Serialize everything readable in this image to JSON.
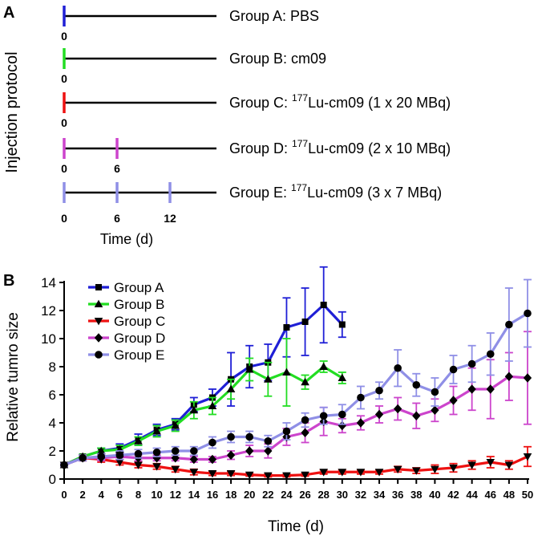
{
  "panel_a": {
    "label": "A",
    "ylabel": "Injection protocol",
    "xlabel": "Time (d)",
    "groups": [
      {
        "name": "Group A: PBS",
        "prefix": "Group A: PBS",
        "sup": "",
        "suffix": "",
        "color": "#1f1fd6",
        "days": [
          0
        ]
      },
      {
        "name": "Group B: cm09",
        "prefix": "Group B: cm09",
        "sup": "",
        "suffix": "",
        "color": "#22dd22",
        "days": [
          0
        ]
      },
      {
        "name": "Group C: 177Lu-cm09 (1 x 20 MBq)",
        "prefix": "Group C: ",
        "sup": "177",
        "suffix": "Lu-cm09 (1 x 20 MBq)",
        "color": "#ee1111",
        "days": [
          0
        ]
      },
      {
        "name": "Group D: 177Lu-cm09 (2 x 10 MBq)",
        "prefix": "Group D: ",
        "sup": "177",
        "suffix": "Lu-cm09 (2 x 10 MBq)",
        "color": "#cc44cc",
        "days": [
          0,
          6
        ]
      },
      {
        "name": "Group E: 177Lu-cm09 (3 x 7 MBq)",
        "prefix": "Group E: ",
        "sup": "177",
        "suffix": "Lu-cm09 (3 x   7 MBq)",
        "color": "#8f8fe6",
        "days": [
          0,
          6,
          12
        ]
      }
    ],
    "tick_labels": [
      {
        "group_index": 0,
        "labels": [
          "0"
        ]
      },
      {
        "group_index": 1,
        "labels": [
          "0"
        ]
      },
      {
        "group_index": 2,
        "labels": [
          "0"
        ]
      },
      {
        "group_index": 3,
        "labels": [
          "0",
          "6"
        ]
      },
      {
        "group_index": 4,
        "labels": [
          "0",
          "6",
          "12"
        ]
      }
    ]
  },
  "chart_data": {
    "panel_label": "B",
    "type": "line",
    "title": "",
    "xlabel": "Time (d)",
    "ylabel": "Relative tumro size",
    "xlim": [
      0,
      50
    ],
    "ylim": [
      0,
      14
    ],
    "xticks": [
      0,
      2,
      4,
      6,
      8,
      10,
      12,
      14,
      16,
      18,
      20,
      22,
      24,
      26,
      28,
      30,
      32,
      34,
      36,
      38,
      40,
      42,
      44,
      46,
      48,
      50
    ],
    "yticks": [
      0,
      2,
      4,
      6,
      8,
      10,
      12,
      14
    ],
    "legend_position": "top-left",
    "series": [
      {
        "name": "Group A",
        "color": "#1f1fd6",
        "marker": "square",
        "x": [
          0,
          2,
          4,
          6,
          8,
          10,
          12,
          14,
          16,
          18,
          20,
          22,
          24,
          26,
          28,
          30
        ],
        "y": [
          1.0,
          1.6,
          2.0,
          2.2,
          2.8,
          3.5,
          3.9,
          5.3,
          5.8,
          7.1,
          8.0,
          8.3,
          10.8,
          11.2,
          12.4,
          11.0
        ],
        "err": [
          0.1,
          0.15,
          0.2,
          0.3,
          0.4,
          0.4,
          0.4,
          0.5,
          0.6,
          1.9,
          1.5,
          1.3,
          2.1,
          2.4,
          2.7,
          0.9
        ]
      },
      {
        "name": "Group B",
        "color": "#22dd22",
        "marker": "triangle-up",
        "x": [
          0,
          2,
          4,
          6,
          8,
          10,
          12,
          14,
          16,
          18,
          20,
          22,
          24,
          26,
          28,
          30
        ],
        "y": [
          1.0,
          1.6,
          2.0,
          2.1,
          2.7,
          3.4,
          3.8,
          4.9,
          5.2,
          6.4,
          7.8,
          7.1,
          7.6,
          6.9,
          8.0,
          7.2
        ],
        "err": [
          0.1,
          0.15,
          0.2,
          0.3,
          0.3,
          0.4,
          0.4,
          0.6,
          0.6,
          0.7,
          0.8,
          1.2,
          2.4,
          0.5,
          0.4,
          0.4
        ]
      },
      {
        "name": "Group C",
        "color": "#ee1111",
        "marker": "triangle-down",
        "x": [
          0,
          2,
          4,
          6,
          8,
          10,
          12,
          14,
          16,
          18,
          20,
          22,
          24,
          26,
          28,
          30,
          32,
          34,
          36,
          38,
          40,
          42,
          44,
          46,
          48,
          50
        ],
        "y": [
          1.0,
          1.5,
          1.4,
          1.2,
          1.0,
          0.9,
          0.7,
          0.5,
          0.4,
          0.4,
          0.3,
          0.25,
          0.25,
          0.3,
          0.5,
          0.5,
          0.5,
          0.5,
          0.7,
          0.6,
          0.7,
          0.8,
          1.0,
          1.2,
          1.0,
          1.6
        ],
        "err": [
          0.1,
          0.2,
          0.2,
          0.2,
          0.2,
          0.2,
          0.2,
          0.2,
          0.15,
          0.15,
          0.1,
          0.1,
          0.1,
          0.1,
          0.15,
          0.15,
          0.15,
          0.15,
          0.2,
          0.2,
          0.3,
          0.3,
          0.3,
          0.4,
          0.3,
          0.7
        ]
      },
      {
        "name": "Group D",
        "color": "#cc44cc",
        "marker": "diamond",
        "x": [
          0,
          2,
          4,
          6,
          8,
          10,
          12,
          14,
          16,
          18,
          20,
          22,
          24,
          26,
          28,
          30,
          32,
          34,
          36,
          38,
          40,
          42,
          44,
          46,
          48,
          50
        ],
        "y": [
          1.0,
          1.5,
          1.5,
          1.6,
          1.5,
          1.5,
          1.5,
          1.4,
          1.4,
          1.7,
          2.0,
          2.0,
          3.0,
          3.3,
          4.1,
          3.8,
          4.0,
          4.6,
          5.0,
          4.5,
          4.9,
          5.6,
          6.4,
          6.4,
          7.3,
          7.2
        ],
        "err": [
          0.1,
          0.2,
          0.2,
          0.2,
          0.2,
          0.2,
          0.2,
          0.2,
          0.2,
          0.3,
          0.4,
          0.5,
          0.6,
          0.7,
          1.0,
          0.5,
          0.5,
          0.6,
          0.8,
          0.9,
          0.8,
          1.0,
          1.5,
          2.1,
          1.7,
          3.3
        ]
      },
      {
        "name": "Group E",
        "color": "#8f8fe6",
        "marker": "circle",
        "x": [
          0,
          2,
          4,
          6,
          8,
          10,
          12,
          14,
          16,
          18,
          20,
          22,
          24,
          26,
          28,
          30,
          32,
          34,
          36,
          38,
          40,
          42,
          44,
          46,
          48,
          50
        ],
        "y": [
          1.0,
          1.5,
          1.6,
          1.7,
          1.8,
          1.9,
          2.0,
          2.0,
          2.6,
          3.0,
          3.0,
          2.7,
          3.4,
          4.2,
          4.5,
          4.6,
          5.8,
          6.3,
          7.9,
          6.7,
          6.2,
          7.8,
          8.2,
          8.9,
          11.0,
          11.8
        ],
        "err": [
          0.1,
          0.2,
          0.2,
          0.3,
          0.3,
          0.3,
          0.3,
          0.3,
          0.4,
          0.4,
          0.4,
          0.4,
          0.6,
          0.5,
          0.6,
          0.7,
          0.8,
          0.6,
          1.3,
          0.8,
          1.0,
          1.0,
          1.3,
          1.5,
          2.6,
          2.4
        ]
      }
    ]
  }
}
